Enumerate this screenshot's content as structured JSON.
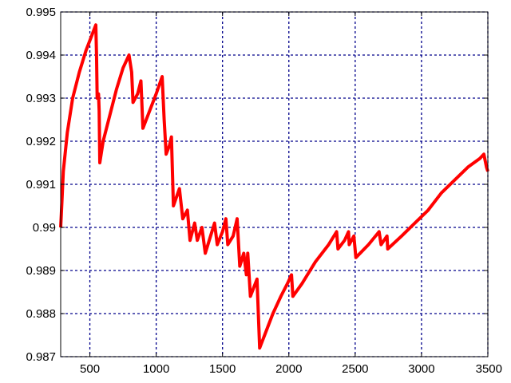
{
  "chart_data": {
    "type": "line",
    "title": "",
    "xlabel": "",
    "ylabel": "",
    "xlim": [
      280,
      3500
    ],
    "ylim": [
      0.987,
      0.995
    ],
    "grid": true,
    "x_ticks": [
      500,
      1000,
      1500,
      2000,
      2500,
      3000,
      3500
    ],
    "x_tick_labels": [
      "500",
      "1000",
      "1500",
      "2000",
      "2500",
      "3000",
      "3500"
    ],
    "y_ticks": [
      0.987,
      0.988,
      0.989,
      0.99,
      0.991,
      0.992,
      0.993,
      0.994,
      0.995
    ],
    "y_tick_labels": [
      "0.987",
      "0.988",
      "0.989",
      "0.99",
      "0.991",
      "0.992",
      "0.993",
      "0.994",
      "0.995"
    ],
    "colors": {
      "line": "#ff0000",
      "grid": "#00008b",
      "axes": "#000000",
      "background": "#ffffff"
    },
    "series": [
      {
        "points": [
          [
            280,
            0.99
          ],
          [
            285,
            0.9903
          ],
          [
            300,
            0.9913
          ],
          [
            330,
            0.9922
          ],
          [
            370,
            0.993
          ],
          [
            420,
            0.9936
          ],
          [
            470,
            0.9941
          ],
          [
            520,
            0.9945
          ],
          [
            545,
            0.9947
          ],
          [
            550,
            0.994
          ],
          [
            555,
            0.993
          ],
          [
            565,
            0.9931
          ],
          [
            570,
            0.9927
          ],
          [
            575,
            0.9915
          ],
          [
            600,
            0.992
          ],
          [
            650,
            0.9926
          ],
          [
            700,
            0.9932
          ],
          [
            750,
            0.9937
          ],
          [
            795,
            0.994
          ],
          [
            815,
            0.9936
          ],
          [
            825,
            0.9929
          ],
          [
            860,
            0.9931
          ],
          [
            885,
            0.9934
          ],
          [
            900,
            0.9923
          ],
          [
            950,
            0.9927
          ],
          [
            1000,
            0.9931
          ],
          [
            1045,
            0.9935
          ],
          [
            1060,
            0.9925
          ],
          [
            1075,
            0.9917
          ],
          [
            1100,
            0.9919
          ],
          [
            1115,
            0.9921
          ],
          [
            1130,
            0.9905
          ],
          [
            1175,
            0.9909
          ],
          [
            1200,
            0.9902
          ],
          [
            1235,
            0.9904
          ],
          [
            1255,
            0.9897
          ],
          [
            1290,
            0.9901
          ],
          [
            1310,
            0.9897
          ],
          [
            1345,
            0.99
          ],
          [
            1370,
            0.9894
          ],
          [
            1420,
            0.9899
          ],
          [
            1440,
            0.9901
          ],
          [
            1460,
            0.9896
          ],
          [
            1500,
            0.9899
          ],
          [
            1525,
            0.9902
          ],
          [
            1540,
            0.9896
          ],
          [
            1580,
            0.9898
          ],
          [
            1610,
            0.9902
          ],
          [
            1630,
            0.9891
          ],
          [
            1660,
            0.9894
          ],
          [
            1680,
            0.9889
          ],
          [
            1690,
            0.9894
          ],
          [
            1710,
            0.9884
          ],
          [
            1760,
            0.9888
          ],
          [
            1780,
            0.9872
          ],
          [
            1830,
            0.9876
          ],
          [
            1880,
            0.988
          ],
          [
            1940,
            0.9884
          ],
          [
            1990,
            0.9887
          ],
          [
            2020,
            0.9889
          ],
          [
            2030,
            0.9884
          ],
          [
            2100,
            0.9887
          ],
          [
            2200,
            0.9892
          ],
          [
            2300,
            0.9896
          ],
          [
            2360,
            0.9899
          ],
          [
            2370,
            0.9895
          ],
          [
            2420,
            0.9897
          ],
          [
            2450,
            0.9899
          ],
          [
            2455,
            0.9896
          ],
          [
            2490,
            0.9898
          ],
          [
            2505,
            0.9893
          ],
          [
            2600,
            0.9896
          ],
          [
            2680,
            0.9899
          ],
          [
            2695,
            0.9896
          ],
          [
            2740,
            0.9898
          ],
          [
            2745,
            0.9895
          ],
          [
            2850,
            0.9898
          ],
          [
            2950,
            0.9901
          ],
          [
            3050,
            0.9904
          ],
          [
            3150,
            0.9908
          ],
          [
            3250,
            0.9911
          ],
          [
            3350,
            0.9914
          ],
          [
            3440,
            0.9916
          ],
          [
            3470,
            0.9917
          ],
          [
            3490,
            0.9914
          ],
          [
            3500,
            0.9913
          ]
        ]
      }
    ]
  }
}
